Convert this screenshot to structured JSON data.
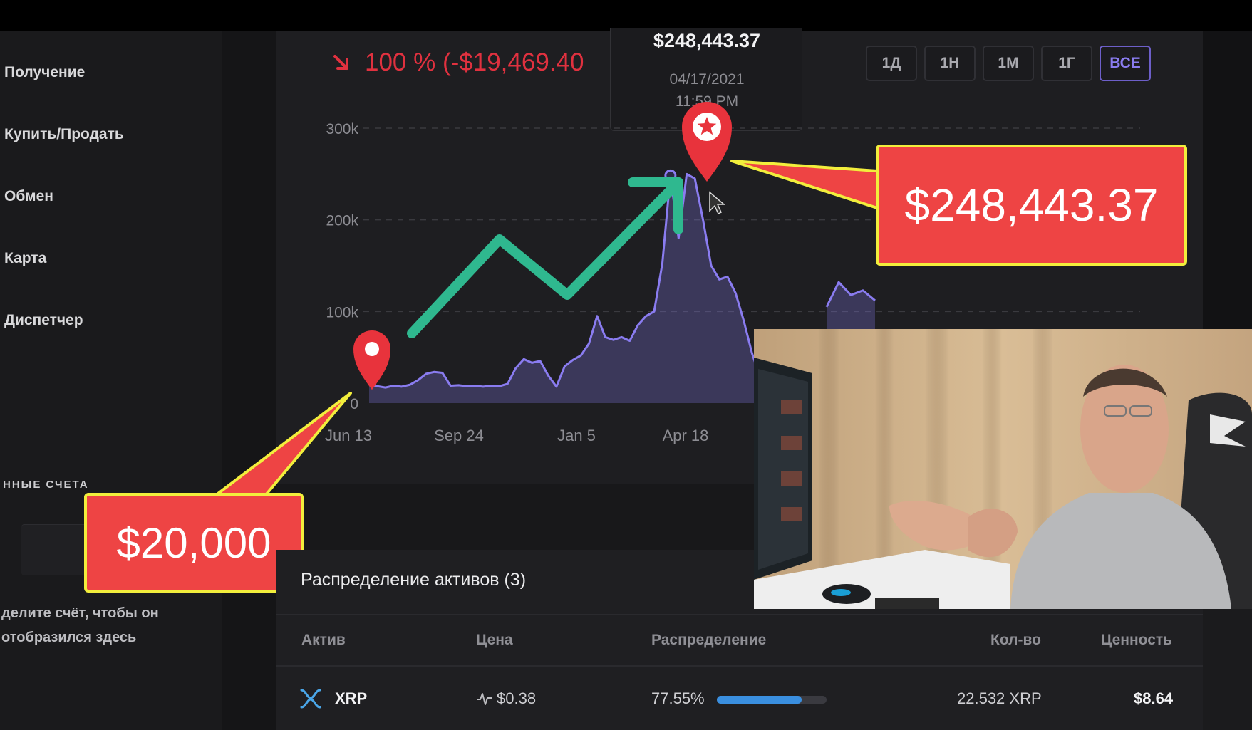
{
  "sidebar": {
    "items": [
      {
        "label": "Получение"
      },
      {
        "label": "Купить/Продать"
      },
      {
        "label": "Обмен"
      },
      {
        "label": "Карта"
      },
      {
        "label": "Диспетчер"
      }
    ],
    "section_title": "нные счета",
    "hint_line1": "делите счёт, чтобы он",
    "hint_line2": "отобразился здесь"
  },
  "portfolio": {
    "change_text": "100 % (-$19,469.40",
    "change_color": "#e0313f"
  },
  "tooltip": {
    "value": "$248,443.37",
    "date": "04/17/2021",
    "time": "11:59 PM"
  },
  "ranges": [
    {
      "label": "1Д",
      "active": false
    },
    {
      "label": "1Н",
      "active": false
    },
    {
      "label": "1М",
      "active": false
    },
    {
      "label": "1Г",
      "active": false
    },
    {
      "label": "ВСЕ",
      "active": true
    }
  ],
  "chart_data": {
    "type": "area",
    "title": "",
    "xlabel": "",
    "ylabel": "",
    "x_ticks": [
      "Jun 13",
      "Sep 24",
      "Jan 5",
      "Apr 18"
    ],
    "y_ticks": [
      "0",
      "100k",
      "200k",
      "300k"
    ],
    "ylim": [
      0,
      300000
    ],
    "grid": true,
    "series": [
      {
        "values": [
          20000,
          18500,
          17000,
          19000,
          18000,
          20000,
          25000,
          32000,
          34000,
          33000,
          19000,
          19500,
          18500,
          19000,
          18000,
          19000,
          18500,
          21000,
          38000,
          48000,
          44000,
          46000,
          30000,
          18000,
          40000,
          47000,
          52000,
          65000,
          95000,
          72000,
          69000,
          72000,
          68000,
          85000,
          95000,
          100000,
          152000,
          248443,
          180000,
          250000,
          245000,
          200000,
          150000,
          135000,
          138000,
          120000,
          90000,
          55000,
          28000,
          25000,
          105000,
          132000,
          118000,
          123000,
          112000
        ]
      }
    ]
  },
  "callouts": {
    "peak": "$248,443.37",
    "start": "$20,000"
  },
  "assets": {
    "title": "Распределение активов (3)",
    "columns": [
      "Актив",
      "Цена",
      "Распределение",
      "Кол-во",
      "Ценность"
    ],
    "rows": [
      {
        "asset": "XRP",
        "price": "$0.38",
        "allocation": "77.55%",
        "allocation_value": 0.7755,
        "quantity": "22.532 XRP",
        "value": "$8.64"
      }
    ]
  },
  "colors": {
    "accent": "#6d5fc9",
    "line": "#8a7cf0",
    "callout_fill": "#ee4444",
    "callout_border": "#f2ee3c",
    "pin": "#e8333c",
    "arrow": "#2fb88f",
    "allocation_bar": "#3a8fe0"
  }
}
